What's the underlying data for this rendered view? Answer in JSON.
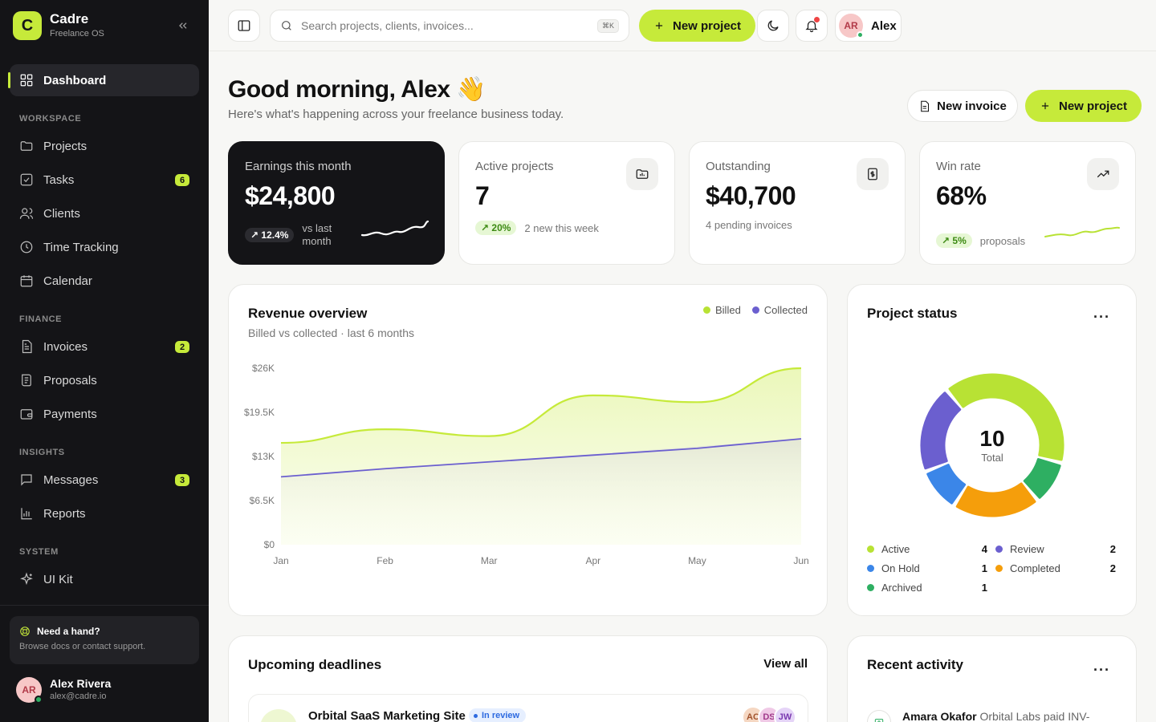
{
  "brand": {
    "logo_letter": "C",
    "name": "Cadre",
    "subtitle": "Freelance OS"
  },
  "sidebar": {
    "dashboard": "Dashboard",
    "sections": {
      "workspace": "WORKSPACE",
      "finance": "FINANCE",
      "insights": "INSIGHTS",
      "system": "SYSTEM"
    },
    "items": {
      "projects": "Projects",
      "tasks": "Tasks",
      "tasks_badge": "6",
      "clients": "Clients",
      "time_tracking": "Time Tracking",
      "calendar": "Calendar",
      "invoices": "Invoices",
      "invoices_badge": "2",
      "proposals": "Proposals",
      "payments": "Payments",
      "messages": "Messages",
      "messages_badge": "3",
      "reports": "Reports",
      "ui_kit": "UI Kit"
    },
    "help": {
      "title": "Need a hand?",
      "subtitle": "Browse docs or contact support."
    },
    "user": {
      "initials": "AR",
      "name": "Alex Rivera",
      "email": "alex@cadre.io"
    }
  },
  "topbar": {
    "search_placeholder": "Search projects, clients, invoices...",
    "search_shortcut": "⌘K",
    "new_project": "New project",
    "profile_initials": "AR",
    "profile_name": "Alex"
  },
  "greeting": {
    "title": "Good morning, Alex 👋",
    "subtitle": "Here's what's happening across your freelance business today.",
    "new_invoice": "New invoice",
    "new_project": "New project"
  },
  "kpis": {
    "earnings": {
      "label": "Earnings this month",
      "value": "$24,800",
      "change": "↗ 12.4%",
      "note": "vs last month"
    },
    "active_projects": {
      "label": "Active projects",
      "value": "7",
      "change": "↗ 20%",
      "note": "2 new this week"
    },
    "outstanding": {
      "label": "Outstanding",
      "value": "$40,700",
      "note": "4 pending invoices"
    },
    "win_rate": {
      "label": "Win rate",
      "value": "68%",
      "change": "↗ 5%",
      "note": "proposals"
    }
  },
  "revenue": {
    "title": "Revenue overview",
    "subtitle": "Billed vs collected · last 6 months",
    "legend_billed": "Billed",
    "legend_collected": "Collected"
  },
  "chart_data": {
    "type": "area",
    "categories": [
      "Jan",
      "Feb",
      "Mar",
      "Apr",
      "May",
      "Jun"
    ],
    "y_ticks": [
      "$26K",
      "$19.5K",
      "$13K",
      "$6.5K",
      "$0"
    ],
    "ylim": [
      0,
      26000
    ],
    "series": [
      {
        "name": "Billed",
        "color": "#c6ea3a",
        "values": [
          15000,
          17000,
          16000,
          22000,
          21000,
          26000
        ]
      },
      {
        "name": "Collected",
        "color": "#6b5fcf",
        "values": [
          10000,
          11200,
          12200,
          13200,
          14200,
          15600
        ]
      }
    ],
    "grid": false,
    "legend": "top-right"
  },
  "project_status": {
    "title": "Project status",
    "total": "10",
    "total_label": "Total",
    "items": [
      {
        "label": "Active",
        "count": "4",
        "value": 4,
        "color": "#b8e234"
      },
      {
        "label": "Review",
        "count": "2",
        "value": 2,
        "color": "#6b5fcf"
      },
      {
        "label": "On Hold",
        "count": "1",
        "value": 1,
        "color": "#3b86e8"
      },
      {
        "label": "Completed",
        "count": "2",
        "value": 2,
        "color": "#f59e0b"
      },
      {
        "label": "Archived",
        "count": "1",
        "value": 1,
        "color": "#2eaf62"
      }
    ]
  },
  "deadlines": {
    "title": "Upcoming deadlines",
    "view_all": "View all",
    "first": {
      "name": "Orbital SaaS Marketing Site",
      "status": "In review",
      "avatars": [
        "AC",
        "DS",
        "JW"
      ]
    }
  },
  "activity": {
    "title": "Recent activity",
    "first": {
      "actor": "Amara Okafor",
      "text": "Orbital Labs paid INV-"
    }
  }
}
